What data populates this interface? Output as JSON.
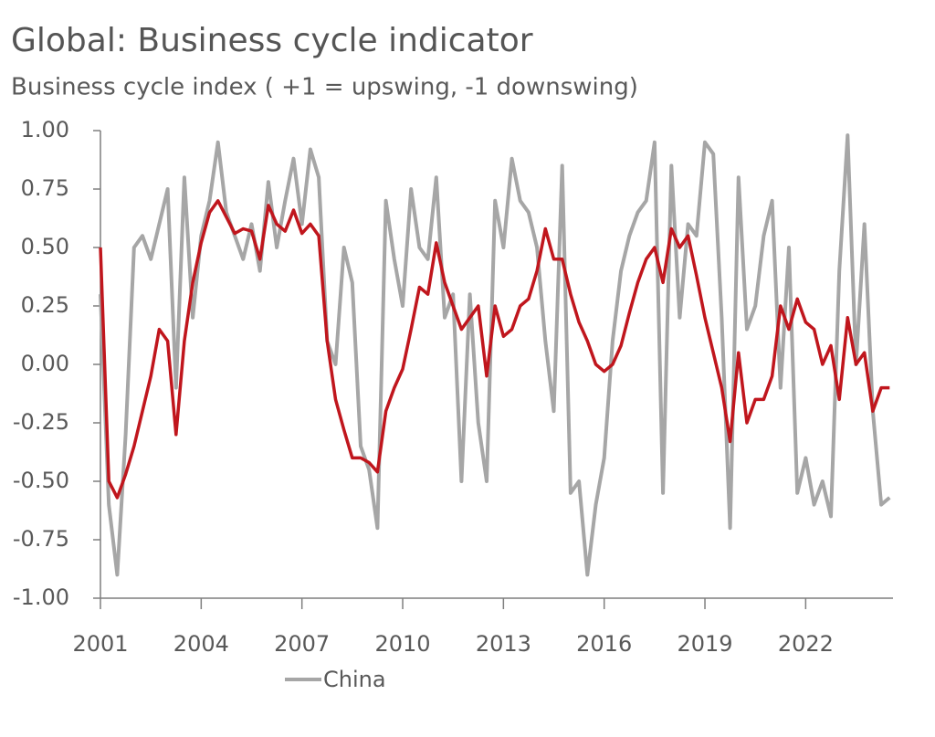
{
  "chart_data": {
    "type": "line",
    "title": "Global: Business cycle indicator",
    "subtitle": "Business cycle index ( +1 = upswing, -1 downswing)",
    "x": [
      2001,
      2001.25,
      2001.5,
      2001.75,
      2002,
      2002.25,
      2002.5,
      2002.75,
      2003,
      2003.25,
      2003.5,
      2003.75,
      2004,
      2004.25,
      2004.5,
      2004.75,
      2005,
      2005.25,
      2005.5,
      2005.75,
      2006,
      2006.25,
      2006.5,
      2006.75,
      2007,
      2007.25,
      2007.5,
      2007.75,
      2008,
      2008.25,
      2008.5,
      2008.75,
      2009,
      2009.25,
      2009.5,
      2009.75,
      2010,
      2010.25,
      2010.5,
      2010.75,
      2011,
      2011.25,
      2011.5,
      2011.75,
      2012,
      2012.25,
      2012.5,
      2012.75,
      2013,
      2013.25,
      2013.5,
      2013.75,
      2014,
      2014.25,
      2014.5,
      2014.75,
      2015,
      2015.25,
      2015.5,
      2015.75,
      2016,
      2016.25,
      2016.5,
      2016.75,
      2017,
      2017.25,
      2017.5,
      2017.75,
      2018,
      2018.25,
      2018.5,
      2018.75,
      2019,
      2019.25,
      2019.5,
      2019.75,
      2020,
      2020.25,
      2020.5,
      2020.75,
      2021,
      2021.25,
      2021.5,
      2021.75,
      2022,
      2022.25,
      2022.5,
      2022.75,
      2023,
      2023.25,
      2023.5,
      2023.75,
      2024,
      2024.25,
      2024.5
    ],
    "series": [
      {
        "name": "China",
        "color": "#a6a6a6",
        "values": [
          0.3,
          -0.6,
          -0.9,
          -0.3,
          0.5,
          0.55,
          0.45,
          0.6,
          0.75,
          -0.1,
          0.8,
          0.2,
          0.55,
          0.7,
          0.95,
          0.65,
          0.55,
          0.45,
          0.6,
          0.4,
          0.78,
          0.5,
          0.7,
          0.88,
          0.6,
          0.92,
          0.8,
          0.1,
          0.0,
          0.5,
          0.35,
          -0.35,
          -0.45,
          -0.7,
          0.7,
          0.45,
          0.25,
          0.75,
          0.5,
          0.45,
          0.8,
          0.2,
          0.3,
          -0.5,
          0.3,
          -0.25,
          -0.5,
          0.7,
          0.5,
          0.88,
          0.7,
          0.65,
          0.5,
          0.1,
          -0.2,
          0.85,
          -0.55,
          -0.5,
          -0.9,
          -0.6,
          -0.4,
          0.1,
          0.4,
          0.55,
          0.65,
          0.7,
          0.95,
          -0.55,
          0.85,
          0.2,
          0.6,
          0.55,
          0.95,
          0.9,
          0.2,
          -0.7,
          0.8,
          0.15,
          0.25,
          0.55,
          0.7,
          -0.1,
          0.5,
          -0.55,
          -0.4,
          -0.6,
          -0.5,
          -0.65,
          0.4,
          0.98,
          0.0,
          0.6,
          -0.2,
          -0.6,
          -0.57
        ]
      },
      {
        "color": "#c0161d",
        "values": [
          0.5,
          -0.5,
          -0.57,
          -0.47,
          -0.35,
          -0.2,
          -0.05,
          0.15,
          0.1,
          -0.3,
          0.1,
          0.35,
          0.52,
          0.65,
          0.7,
          0.63,
          0.56,
          0.58,
          0.57,
          0.45,
          0.68,
          0.6,
          0.57,
          0.66,
          0.56,
          0.6,
          0.55,
          0.1,
          -0.15,
          -0.28,
          -0.4,
          -0.4,
          -0.42,
          -0.46,
          -0.2,
          -0.1,
          -0.02,
          0.15,
          0.33,
          0.3,
          0.52,
          0.35,
          0.25,
          0.15,
          0.2,
          0.25,
          -0.05,
          0.25,
          0.12,
          0.15,
          0.25,
          0.28,
          0.4,
          0.58,
          0.45,
          0.45,
          0.3,
          0.18,
          0.1,
          0.0,
          -0.03,
          0.0,
          0.08,
          0.22,
          0.35,
          0.45,
          0.5,
          0.35,
          0.58,
          0.5,
          0.55,
          0.38,
          0.2,
          0.05,
          -0.1,
          -0.33,
          0.05,
          -0.25,
          -0.15,
          -0.15,
          -0.05,
          0.25,
          0.15,
          0.28,
          0.18,
          0.15,
          0.0,
          0.08,
          -0.15,
          0.2,
          0.0,
          0.05,
          -0.2,
          -0.1,
          -0.1
        ]
      }
    ],
    "xlim": [
      2001,
      2024.6
    ],
    "xticks": [
      2001,
      2004,
      2007,
      2010,
      2013,
      2016,
      2019,
      2022
    ],
    "ylim": [
      -1,
      1
    ],
    "yticks": [
      {
        "value": 1,
        "label": "1.00"
      },
      {
        "value": 0.75,
        "label": "0.75"
      },
      {
        "value": 0.5,
        "label": "0.50"
      },
      {
        "value": 0.25,
        "label": "0.25"
      },
      {
        "value": 0,
        "label": "0.00"
      },
      {
        "value": -0.25,
        "label": "-0.25"
      },
      {
        "value": -0.5,
        "label": "-0.50"
      },
      {
        "value": -0.75,
        "label": "-0.75"
      },
      {
        "value": -1,
        "label": "-1.00"
      }
    ],
    "grid": false
  }
}
